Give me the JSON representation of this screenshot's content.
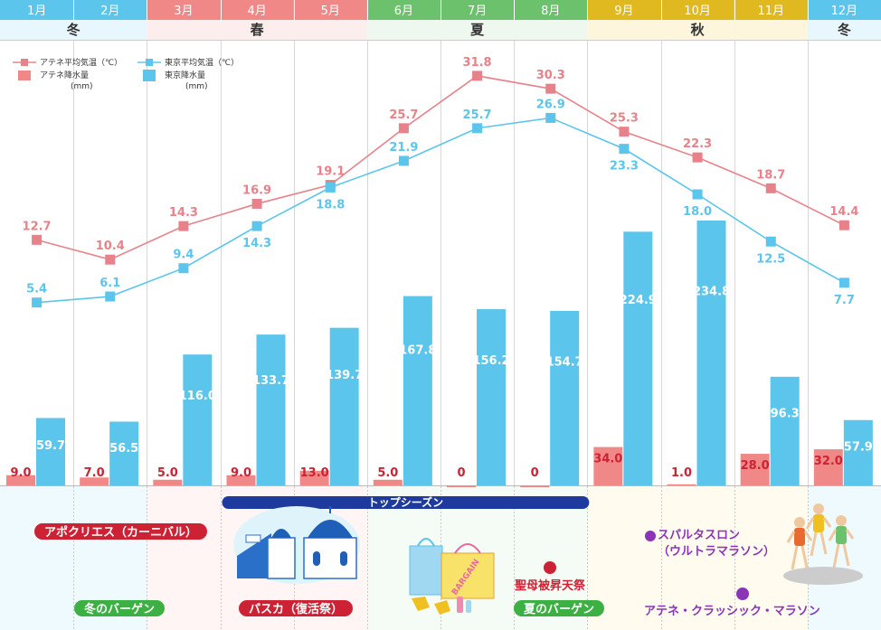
{
  "chart_data": {
    "type": "bar+line",
    "categories": [
      "1月",
      "2月",
      "3月",
      "4月",
      "5月",
      "6月",
      "7月",
      "8月",
      "9月",
      "10月",
      "11月",
      "12月"
    ],
    "seasons": [
      {
        "label": "冬",
        "from": 0,
        "to": 1,
        "color": "#5bc5ec",
        "bg": "#e8f7fd",
        "light": "#eefafe"
      },
      {
        "label": "春",
        "from": 2,
        "to": 4,
        "color": "#f08888",
        "bg": "#fdeeee",
        "light": "#fff5f5"
      },
      {
        "label": "夏",
        "from": 5,
        "to": 7,
        "color": "#6cc26c",
        "bg": "#eef8ee",
        "light": "#f5fbf5"
      },
      {
        "label": "秋",
        "from": 8,
        "to": 10,
        "color": "#e0b820",
        "bg": "#fdf6dd",
        "light": "#fffbee"
      },
      {
        "label": "冬",
        "from": 11,
        "to": 11,
        "color": "#5bc5ec",
        "bg": "#e8f7fd",
        "light": "#eefafe"
      }
    ],
    "series": [
      {
        "name": "アテネ平均気温（℃）",
        "kind": "line",
        "color": "#e8828a",
        "values": [
          12.7,
          10.4,
          14.3,
          16.9,
          19.1,
          25.7,
          31.8,
          30.3,
          25.3,
          22.3,
          18.7,
          14.4
        ],
        "labels": [
          "12.7",
          "10.4",
          "14.3",
          "16.9",
          "19.1",
          "25.7",
          "31.8",
          "30.3",
          "25.3",
          "22.3",
          "18.7",
          "14.4"
        ]
      },
      {
        "name": "東京平均気温（℃）",
        "kind": "line",
        "color": "#5bc5ec",
        "values": [
          5.4,
          6.1,
          9.4,
          14.3,
          18.8,
          21.9,
          25.7,
          26.9,
          23.3,
          18.0,
          12.5,
          7.7
        ],
        "labels": [
          "5.4",
          "6.1",
          "9.4",
          "14.3",
          "18.8",
          "21.9",
          "25.7",
          "26.9",
          "23.3",
          "18.0",
          "12.5",
          "7.7"
        ]
      },
      {
        "name": "アテネ降水量",
        "unit": "(mm)",
        "kind": "bar",
        "color": "#f08888",
        "values": [
          9.0,
          7.0,
          5.0,
          9.0,
          13.0,
          5.0,
          0,
          0,
          34.0,
          1.0,
          28.0,
          32.0
        ],
        "labels": [
          "9.0",
          "7.0",
          "5.0",
          "9.0",
          "13.0",
          "5.0",
          "0",
          "0",
          "34.0",
          "1.0",
          "28.0",
          "32.0"
        ]
      },
      {
        "name": "東京降水量",
        "unit": "(mm)",
        "kind": "bar",
        "color": "#5bc5ec",
        "values": [
          59.7,
          56.5,
          116.0,
          133.7,
          139.7,
          167.8,
          156.2,
          154.7,
          224.9,
          234.8,
          96.3,
          57.9
        ],
        "labels": [
          "59.7",
          "56.5",
          "116.0",
          "133.7",
          "139.7",
          "167.8",
          "156.2",
          "154.7",
          "224.9",
          "234.8",
          "96.3",
          "57.9"
        ]
      }
    ],
    "temp_range": [
      0,
      35
    ],
    "rain_range": [
      0,
      250
    ]
  },
  "top_season": {
    "label": "トップシーズン",
    "from_month": "4月",
    "to_month": "9月"
  },
  "events": [
    {
      "label": "アポクリエス（カーニバル）",
      "color": "#cc2233",
      "style": "pill",
      "month": 1.2
    },
    {
      "label": "冬のバーゲン",
      "color": "#3cb043",
      "style": "pill",
      "month": 1.5
    },
    {
      "label": "パスカ（復活祭）",
      "color": "#cc2233",
      "style": "pill",
      "month": 4.6
    },
    {
      "label": "聖母被昇天祭",
      "color": "#cc2233",
      "style": "dot",
      "month": 8.0
    },
    {
      "label": "夏のバーゲン",
      "color": "#3cb043",
      "style": "pill",
      "month": 7.6
    },
    {
      "label": "スパルタスロン",
      "color": "#8a35b8",
      "style": "dot",
      "month": 9.6
    },
    {
      "label": "（ウルトラマラソン）",
      "color": "#8a35b8",
      "style": "text",
      "month": 9.6
    },
    {
      "label": "アテネ・クラッシック・マラソン",
      "color": "#8a35b8",
      "style": "dot",
      "month": 10.6
    }
  ],
  "illustrations": {
    "santorini": "santorini-church-icon",
    "shopping": "shopping-bags-icon",
    "bargain_tag": "BARGAIN",
    "runners": "marathon-runners-icon"
  }
}
